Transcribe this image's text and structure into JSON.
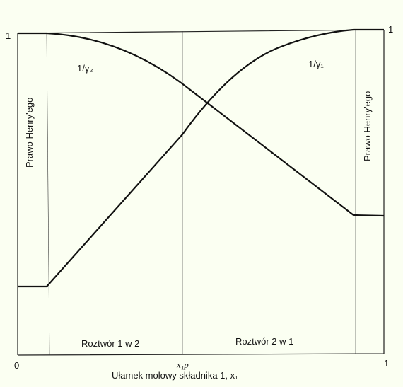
{
  "chart_data": {
    "type": "line",
    "xlabel": "Ułamek molowy składnika 1, x₁",
    "x_axis_ticks": {
      "left": "0",
      "middle": "x₁p",
      "right": "1"
    },
    "y_axis_ticks": {
      "left_top": "1",
      "right_top": "1"
    },
    "series": [
      {
        "name": "1/γ₂",
        "points": [
          [
            0.0,
            1.0
          ],
          [
            0.08,
            1.0
          ],
          [
            0.2,
            0.97
          ],
          [
            0.35,
            0.845
          ],
          [
            0.5,
            0.69
          ],
          [
            0.7,
            0.51
          ],
          [
            0.92,
            0.4
          ],
          [
            1.0,
            0.4
          ]
        ]
      },
      {
        "name": "1/γ₁",
        "points": [
          [
            0.0,
            0.2
          ],
          [
            0.08,
            0.2
          ],
          [
            0.3,
            0.5
          ],
          [
            0.45,
            0.71
          ],
          [
            0.6,
            0.87
          ],
          [
            0.75,
            0.965
          ],
          [
            0.92,
            1.0
          ],
          [
            1.0,
            1.0
          ]
        ]
      }
    ],
    "regions": [
      {
        "label": "Prawo Henry'ego",
        "side": "left"
      },
      {
        "label": "Roztwór 1 w 2",
        "side": "center-left"
      },
      {
        "label": "Roztwór 2 w 1",
        "side": "center-right"
      },
      {
        "label": "Prawo Henry'ego",
        "side": "right"
      }
    ],
    "grid": false
  }
}
